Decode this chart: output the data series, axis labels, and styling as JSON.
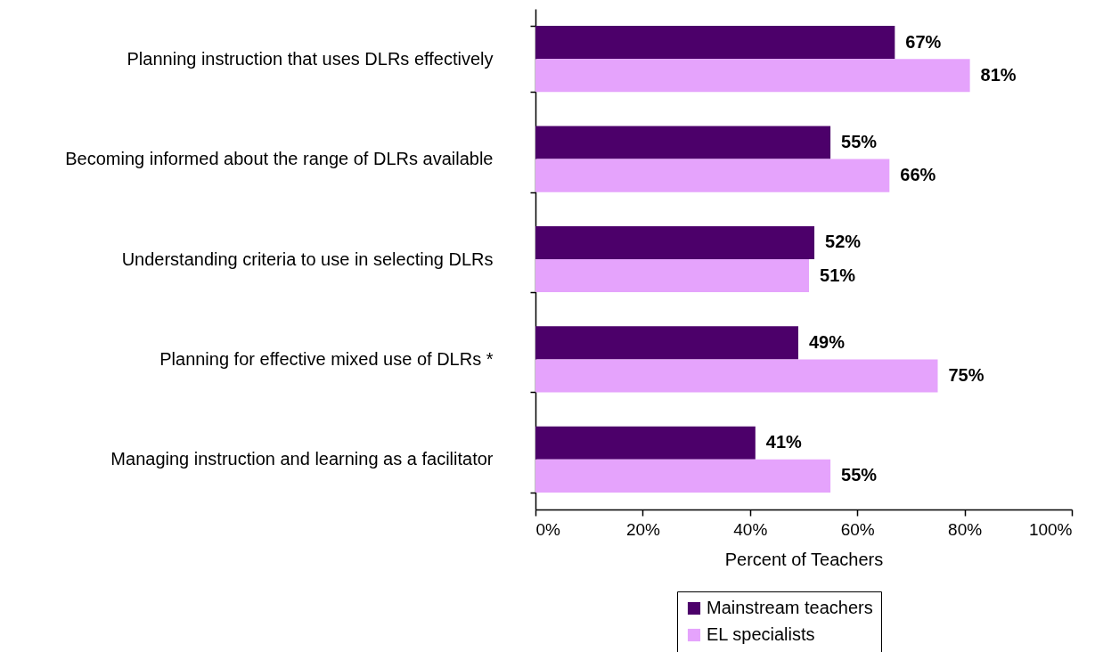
{
  "chart_data": {
    "type": "bar",
    "orientation": "horizontal",
    "categories": [
      "Planning instruction that uses DLRs effectively",
      "Becoming informed about the range of DLRs available",
      "Understanding criteria to use in selecting DLRs",
      "Planning for effective mixed use of DLRs *",
      "Managing instruction and learning as a facilitator"
    ],
    "series": [
      {
        "name": "Mainstream teachers",
        "color": "#4c006a",
        "values": [
          67,
          55,
          52,
          49,
          41
        ],
        "value_labels": [
          "67%",
          "55%",
          "52%",
          "49%",
          "41%"
        ]
      },
      {
        "name": "EL specialists",
        "color": "#e5a3fc",
        "values": [
          81,
          66,
          51,
          75,
          55
        ],
        "value_labels": [
          "81%",
          "66%",
          "51%",
          "75%",
          "55%"
        ]
      }
    ],
    "xlabel": "Percent of Teachers",
    "xlim": [
      0,
      100
    ],
    "xticks": [
      {
        "value": 0,
        "label": "0%"
      },
      {
        "value": 20,
        "label": "20%"
      },
      {
        "value": 40,
        "label": "40%"
      },
      {
        "value": 60,
        "label": "60%"
      },
      {
        "value": 80,
        "label": "80%"
      },
      {
        "value": 100,
        "label": "100%"
      }
    ],
    "legend": "bottom"
  }
}
